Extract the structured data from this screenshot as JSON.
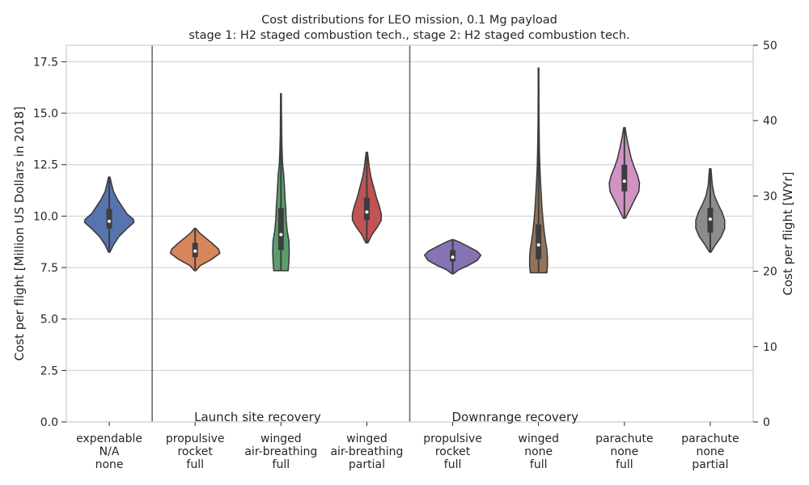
{
  "chart_data": {
    "type": "violin",
    "title": "Cost distributions for LEO mission, 0.1 Mg payload",
    "subtitle": "stage 1: H2 staged combustion tech., stage 2: H2 staged combustion tech.",
    "ylabel": "Cost per flight [Million US Dollars in 2018]",
    "ylabel_right": "Cost per flight [WYr]",
    "ylim": [
      0,
      18.3
    ],
    "yticks": [
      "0.0",
      "2.5",
      "5.0",
      "7.5",
      "10.0",
      "12.5",
      "15.0",
      "17.5"
    ],
    "ylim_right": [
      0,
      50
    ],
    "yticks_right": [
      "0",
      "10",
      "20",
      "30",
      "40",
      "50"
    ],
    "grid": "horizontal",
    "groups": [
      {
        "label": "Launch site recovery",
        "start": 1,
        "end": 3
      },
      {
        "label": "Downrange recovery",
        "start": 4,
        "end": 7
      }
    ],
    "categories": [
      {
        "lines": [
          "expendable",
          "N/A",
          "none"
        ],
        "color": "#5874ae",
        "min": 8.25,
        "max": 11.9,
        "q1": 9.4,
        "median": 9.75,
        "q3": 10.35,
        "profile": [
          [
            8.25,
            0.02
          ],
          [
            8.6,
            0.12
          ],
          [
            9.0,
            0.28
          ],
          [
            9.4,
            0.52
          ],
          [
            9.7,
            0.72
          ],
          [
            9.85,
            0.7
          ],
          [
            10.1,
            0.52
          ],
          [
            10.45,
            0.38
          ],
          [
            10.8,
            0.24
          ],
          [
            11.2,
            0.12
          ],
          [
            11.6,
            0.06
          ],
          [
            11.9,
            0.02
          ]
        ]
      },
      {
        "lines": [
          "propulsive",
          "rocket",
          "full"
        ],
        "color": "#d7865b",
        "min": 7.35,
        "max": 9.4,
        "q1": 8.0,
        "median": 8.3,
        "q3": 8.7,
        "profile": [
          [
            7.35,
            0.02
          ],
          [
            7.6,
            0.15
          ],
          [
            7.9,
            0.48
          ],
          [
            8.2,
            0.72
          ],
          [
            8.4,
            0.68
          ],
          [
            8.7,
            0.48
          ],
          [
            9.0,
            0.26
          ],
          [
            9.2,
            0.12
          ],
          [
            9.4,
            0.02
          ]
        ]
      },
      {
        "lines": [
          "winged",
          "air-breathing",
          "full"
        ],
        "color": "#5b9e6e",
        "min": 7.35,
        "max": 15.95,
        "q1": 8.35,
        "median": 9.1,
        "q3": 10.4,
        "profile": [
          [
            7.35,
            0.21
          ],
          [
            7.8,
            0.23
          ],
          [
            8.3,
            0.24
          ],
          [
            8.8,
            0.23
          ],
          [
            9.3,
            0.18
          ],
          [
            9.8,
            0.15
          ],
          [
            10.3,
            0.14
          ],
          [
            10.8,
            0.12
          ],
          [
            11.4,
            0.1
          ],
          [
            12.0,
            0.08
          ],
          [
            12.5,
            0.05
          ],
          [
            13.2,
            0.03
          ],
          [
            14.0,
            0.02
          ],
          [
            15.0,
            0.015
          ],
          [
            15.95,
            0.01
          ]
        ]
      },
      {
        "lines": [
          "winged",
          "air-breathing",
          "partial"
        ],
        "color": "#c05354",
        "min": 8.7,
        "max": 13.1,
        "q1": 9.8,
        "median": 10.2,
        "q3": 10.9,
        "profile": [
          [
            8.7,
            0.03
          ],
          [
            9.1,
            0.15
          ],
          [
            9.5,
            0.32
          ],
          [
            9.8,
            0.42
          ],
          [
            10.1,
            0.42
          ],
          [
            10.5,
            0.36
          ],
          [
            10.9,
            0.28
          ],
          [
            11.4,
            0.2
          ],
          [
            11.9,
            0.12
          ],
          [
            12.4,
            0.07
          ],
          [
            12.8,
            0.04
          ],
          [
            13.1,
            0.02
          ]
        ]
      },
      {
        "lines": [
          "propulsive",
          "rocket",
          "full"
        ],
        "color": "#8673b3",
        "min": 7.2,
        "max": 8.85,
        "q1": 7.8,
        "median": 8.0,
        "q3": 8.35,
        "profile": [
          [
            7.2,
            0.02
          ],
          [
            7.4,
            0.18
          ],
          [
            7.6,
            0.45
          ],
          [
            7.85,
            0.72
          ],
          [
            8.1,
            0.82
          ],
          [
            8.3,
            0.7
          ],
          [
            8.55,
            0.42
          ],
          [
            8.75,
            0.18
          ],
          [
            8.85,
            0.03
          ]
        ]
      },
      {
        "lines": [
          "winged",
          "none",
          "full"
        ],
        "color": "#947458",
        "min": 7.25,
        "max": 17.2,
        "q1": 7.9,
        "median": 8.6,
        "q3": 9.6,
        "profile": [
          [
            7.25,
            0.24
          ],
          [
            7.6,
            0.26
          ],
          [
            8.0,
            0.26
          ],
          [
            8.4,
            0.24
          ],
          [
            8.8,
            0.2
          ],
          [
            9.3,
            0.16
          ],
          [
            9.8,
            0.13
          ],
          [
            10.4,
            0.1
          ],
          [
            11.0,
            0.08
          ],
          [
            11.6,
            0.06
          ],
          [
            12.3,
            0.04
          ],
          [
            13.2,
            0.025
          ],
          [
            14.5,
            0.015
          ],
          [
            16.0,
            0.01
          ],
          [
            17.2,
            0.008
          ]
        ]
      },
      {
        "lines": [
          "parachute",
          "none",
          "full"
        ],
        "color": "#d193c3",
        "min": 9.9,
        "max": 14.3,
        "q1": 11.2,
        "median": 11.7,
        "q3": 12.5,
        "profile": [
          [
            9.9,
            0.03
          ],
          [
            10.3,
            0.15
          ],
          [
            10.8,
            0.3
          ],
          [
            11.2,
            0.42
          ],
          [
            11.6,
            0.44
          ],
          [
            12.0,
            0.38
          ],
          [
            12.4,
            0.28
          ],
          [
            12.8,
            0.2
          ],
          [
            13.3,
            0.13
          ],
          [
            13.8,
            0.07
          ],
          [
            14.1,
            0.04
          ],
          [
            14.3,
            0.02
          ]
        ]
      },
      {
        "lines": [
          "parachute",
          "none",
          "partial"
        ],
        "color": "#8c8c8c",
        "min": 8.25,
        "max": 12.3,
        "q1": 9.2,
        "median": 9.85,
        "q3": 10.4,
        "profile": [
          [
            8.25,
            0.02
          ],
          [
            8.6,
            0.15
          ],
          [
            9.0,
            0.32
          ],
          [
            9.4,
            0.42
          ],
          [
            9.8,
            0.42
          ],
          [
            10.2,
            0.34
          ],
          [
            10.6,
            0.22
          ],
          [
            11.0,
            0.12
          ],
          [
            11.5,
            0.06
          ],
          [
            11.9,
            0.04
          ],
          [
            12.3,
            0.02
          ]
        ]
      }
    ]
  }
}
